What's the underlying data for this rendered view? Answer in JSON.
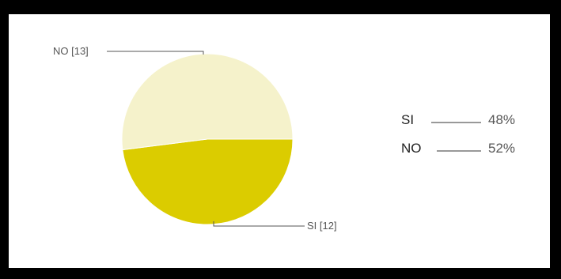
{
  "chart_data": {
    "type": "pie",
    "slices": [
      {
        "name": "SI",
        "value": 12,
        "label": "SI [12]",
        "percent_label": "48%",
        "color": "#dbcc00"
      },
      {
        "name": "NO",
        "value": 13,
        "label": "NO [13]",
        "percent_label": "52%",
        "color": "#f5f2cb"
      }
    ],
    "legend_position": "right"
  }
}
